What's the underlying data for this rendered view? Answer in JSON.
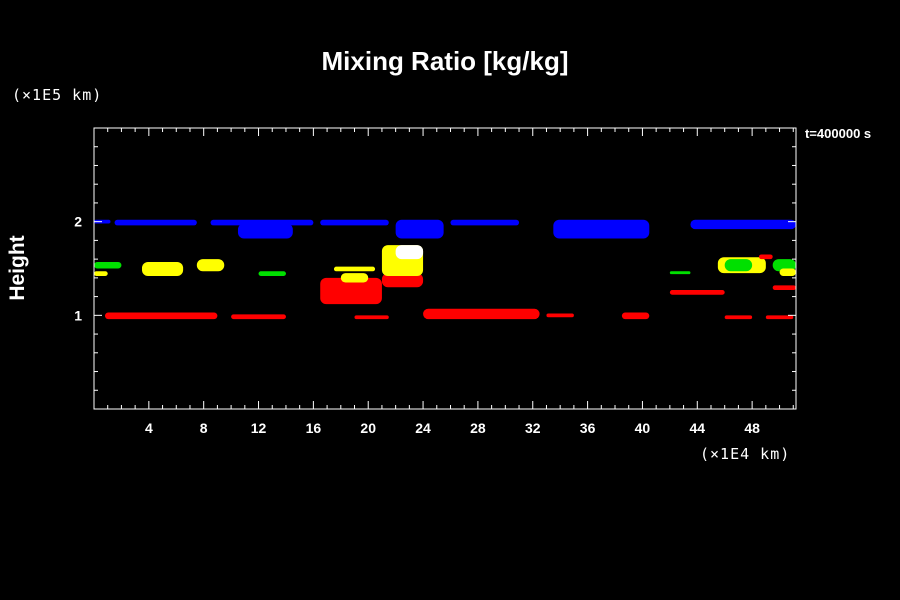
{
  "header": {
    "title": "Mixing Ratio [kg/kg]",
    "y_unit": "(×1E5 km)",
    "x_unit": "(×1E4 km)",
    "time_label": "t=400000 s"
  },
  "colors": {
    "background": "#000000",
    "axes": "#ffffff",
    "level_1": "#ff0000",
    "level_2": "#ffff00",
    "level_3": "#00e000",
    "level_4": "#0000ff",
    "level_5": "#ffffff"
  },
  "chart_data": {
    "type": "heatmap",
    "title": "Mixing Ratio [kg/kg]",
    "xlabel": "",
    "ylabel": "Height",
    "xlim": [
      0,
      51.2
    ],
    "ylim": [
      0,
      3
    ],
    "x_ticks": [
      4,
      8,
      12,
      16,
      20,
      24,
      28,
      32,
      36,
      40,
      44,
      48
    ],
    "y_ticks": [
      1,
      2
    ],
    "grid": false,
    "blobs": [
      {
        "color": "blue",
        "x": [
          0,
          1.2
        ],
        "y": [
          1.98,
          2.02
        ]
      },
      {
        "color": "blue",
        "x": [
          1.5,
          7.5
        ],
        "y": [
          1.96,
          2.02
        ]
      },
      {
        "color": "blue",
        "x": [
          8.5,
          16
        ],
        "y": [
          1.96,
          2.02
        ]
      },
      {
        "color": "blue",
        "x": [
          10.5,
          14.5
        ],
        "y": [
          1.82,
          1.98
        ]
      },
      {
        "color": "blue",
        "x": [
          16.5,
          21.5
        ],
        "y": [
          1.96,
          2.02
        ]
      },
      {
        "color": "blue",
        "x": [
          22,
          25.5
        ],
        "y": [
          1.82,
          2.02
        ]
      },
      {
        "color": "blue",
        "x": [
          26,
          31
        ],
        "y": [
          1.96,
          2.02
        ]
      },
      {
        "color": "blue",
        "x": [
          33.5,
          40.5
        ],
        "y": [
          1.82,
          2.02
        ]
      },
      {
        "color": "blue",
        "x": [
          43.5,
          51.2
        ],
        "y": [
          1.92,
          2.02
        ]
      },
      {
        "color": "green",
        "x": [
          0,
          2
        ],
        "y": [
          1.5,
          1.57
        ]
      },
      {
        "color": "yellow",
        "x": [
          0,
          1
        ],
        "y": [
          1.42,
          1.47
        ]
      },
      {
        "color": "yellow",
        "x": [
          3.5,
          6.5
        ],
        "y": [
          1.42,
          1.57
        ]
      },
      {
        "color": "yellow",
        "x": [
          7.5,
          9.5
        ],
        "y": [
          1.47,
          1.6
        ]
      },
      {
        "color": "green",
        "x": [
          12,
          14
        ],
        "y": [
          1.42,
          1.47
        ]
      },
      {
        "color": "yellow",
        "x": [
          17.5,
          20.5
        ],
        "y": [
          1.47,
          1.52
        ]
      },
      {
        "color": "red",
        "x": [
          16.5,
          21
        ],
        "y": [
          1.12,
          1.4
        ]
      },
      {
        "color": "red",
        "x": [
          21,
          24
        ],
        "y": [
          1.3,
          1.45
        ]
      },
      {
        "color": "yellow",
        "x": [
          18,
          20
        ],
        "y": [
          1.35,
          1.45
        ]
      },
      {
        "color": "yellow",
        "x": [
          21,
          24
        ],
        "y": [
          1.42,
          1.75
        ]
      },
      {
        "color": "white",
        "x": [
          22,
          24
        ],
        "y": [
          1.6,
          1.75
        ]
      },
      {
        "color": "green",
        "x": [
          42,
          43.5
        ],
        "y": [
          1.44,
          1.47
        ]
      },
      {
        "color": "red",
        "x": [
          42,
          46
        ],
        "y": [
          1.22,
          1.27
        ]
      },
      {
        "color": "yellow",
        "x": [
          45.5,
          49
        ],
        "y": [
          1.45,
          1.62
        ]
      },
      {
        "color": "green",
        "x": [
          46,
          48
        ],
        "y": [
          1.47,
          1.6
        ]
      },
      {
        "color": "red",
        "x": [
          48.5,
          49.5
        ],
        "y": [
          1.6,
          1.65
        ]
      },
      {
        "color": "green",
        "x": [
          49.5,
          51.2
        ],
        "y": [
          1.47,
          1.6
        ]
      },
      {
        "color": "yellow",
        "x": [
          50,
          51.2
        ],
        "y": [
          1.42,
          1.5
        ]
      },
      {
        "color": "red",
        "x": [
          49.5,
          51.2
        ],
        "y": [
          1.27,
          1.32
        ]
      },
      {
        "color": "red",
        "x": [
          0.8,
          9
        ],
        "y": [
          0.96,
          1.03
        ]
      },
      {
        "color": "red",
        "x": [
          10,
          14
        ],
        "y": [
          0.96,
          1.01
        ]
      },
      {
        "color": "red",
        "x": [
          19,
          21.5
        ],
        "y": [
          0.96,
          1.0
        ]
      },
      {
        "color": "red",
        "x": [
          24,
          32.5
        ],
        "y": [
          0.96,
          1.07
        ]
      },
      {
        "color": "red",
        "x": [
          33,
          35
        ],
        "y": [
          0.98,
          1.02
        ]
      },
      {
        "color": "red",
        "x": [
          38.5,
          40.5
        ],
        "y": [
          0.96,
          1.03
        ]
      },
      {
        "color": "red",
        "x": [
          46,
          48
        ],
        "y": [
          0.96,
          1.0
        ]
      },
      {
        "color": "red",
        "x": [
          49,
          51
        ],
        "y": [
          0.96,
          1.0
        ]
      }
    ]
  }
}
